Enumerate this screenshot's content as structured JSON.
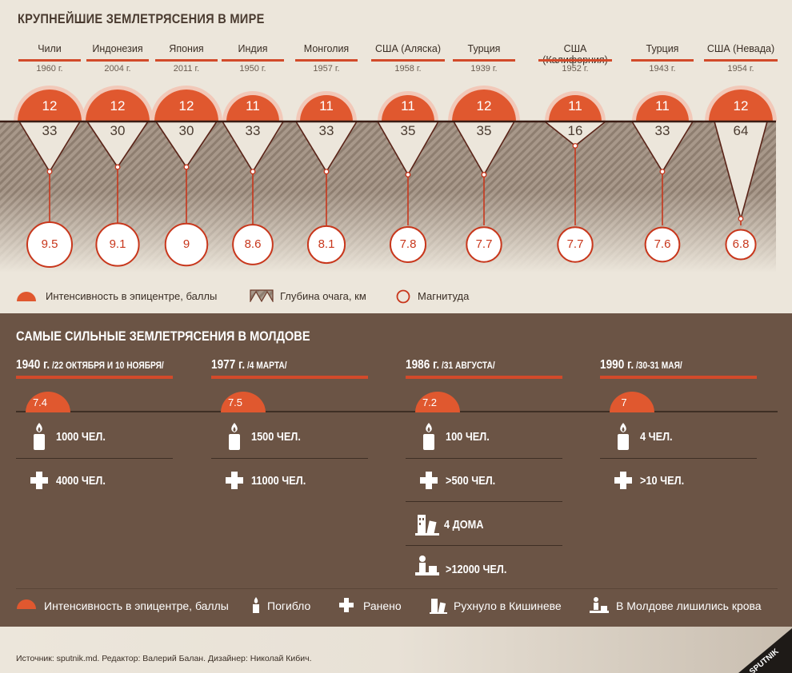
{
  "world": {
    "title": "КРУПНЕЙШИЕ ЗЕМЛЕТРЯСЕНИЯ В МИРЕ",
    "quakes": [
      {
        "country": "Чили",
        "year": "1960 г.",
        "intensity": "12",
        "depth": "33",
        "magnitude": "9.5"
      },
      {
        "country": "Индонезия",
        "year": "2004 г.",
        "intensity": "12",
        "depth": "30",
        "magnitude": "9.1"
      },
      {
        "country": "Япония",
        "year": "2011 г.",
        "intensity": "12",
        "depth": "30",
        "magnitude": "9"
      },
      {
        "country": "Индия",
        "year": "1950 г.",
        "intensity": "11",
        "depth": "33",
        "magnitude": "8.6"
      },
      {
        "country": "Монголия",
        "year": "1957 г.",
        "intensity": "11",
        "depth": "33",
        "magnitude": "8.1"
      },
      {
        "country": "США (Аляска)",
        "year": "1958 г.",
        "intensity": "11",
        "depth": "35",
        "magnitude": "7.8"
      },
      {
        "country": "Турция",
        "year": "1939 г.",
        "intensity": "12",
        "depth": "35",
        "magnitude": "7.7"
      },
      {
        "country": "США (Калифорния)",
        "year": "1952 г.",
        "intensity": "11",
        "depth": "16",
        "magnitude": "7.7"
      },
      {
        "country": "Турция",
        "year": "1943 г.",
        "intensity": "11",
        "depth": "33",
        "magnitude": "7.6"
      },
      {
        "country": "США (Невада)",
        "year": "1954 г.",
        "intensity": "12",
        "depth": "64",
        "magnitude": "6.8"
      }
    ],
    "legend": {
      "intensity": "Интенсивность в эпицентре, баллы",
      "depth": "Глубина очага, км",
      "magnitude": "Магнитуда"
    }
  },
  "moldova": {
    "title": "САМЫЕ СИЛЬНЫЕ ЗЕМЛЕТРЯСЕНИЯ В МОЛДОВЕ",
    "events": [
      {
        "year": "1940 г.",
        "date": "/22 ОКТЯБРЯ И 10 НОЯБРЯ/",
        "intensity": "7.4",
        "killed": "1000 ЧЕЛ.",
        "injured": "4000 ЧЕЛ.",
        "collapsed": "",
        "homeless": ""
      },
      {
        "year": "1977 г.",
        "date": "/4 МАРТА/",
        "intensity": "7.5",
        "killed": "1500 ЧЕЛ.",
        "injured": "11000 ЧЕЛ.",
        "collapsed": "",
        "homeless": ""
      },
      {
        "year": "1986 г.",
        "date": "/31 АВГУСТА/",
        "intensity": "7.2",
        "killed": "100 ЧЕЛ.",
        "injured": ">500 ЧЕЛ.",
        "collapsed": "4 ДОМА",
        "homeless": ">12000 ЧЕЛ."
      },
      {
        "year": "1990 г.",
        "date": "/30-31 МАЯ/",
        "intensity": "7",
        "killed": "4 ЧЕЛ.",
        "injured": ">10 ЧЕЛ.",
        "collapsed": "",
        "homeless": ""
      }
    ],
    "legend": {
      "intensity": "Интенсивность в эпицентре, баллы",
      "killed": "Погибло",
      "injured": "Ранено",
      "collapsed": "Рухнуло в Кишиневе",
      "homeless": "В Молдове  лишились крова"
    }
  },
  "footer": {
    "source": "Источник: sputnik.md. Редактор: Валерий Балан. Дизайнер: Николай Кибич.",
    "logo": "SPUTNIK"
  },
  "colors": {
    "accent": "#d24a2a",
    "brown": "#6b5445",
    "paper": "#ece6db"
  }
}
